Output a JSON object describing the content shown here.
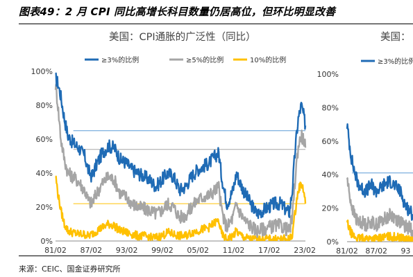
{
  "figure_title": "图表49：2 月 CPI 同比高增长科目数量仍居高位，但环比明显改善",
  "source": "来源：CEIC、国金证券研究所",
  "chart_data": [
    {
      "type": "line",
      "title": "美国：CPI通胀的广泛性（同比）",
      "xlabel": "",
      "ylabel": "",
      "x_tick_labels": [
        "81/02",
        "87/02",
        "93/02",
        "99/02",
        "05/02",
        "11/02",
        "17/02",
        "23/02"
      ],
      "y_tick_labels": [
        "0%",
        "20%",
        "40%",
        "60%",
        "80%",
        "100%"
      ],
      "ylim": [
        0,
        100
      ],
      "grid": false,
      "legend_position": "top",
      "x_start": 1981.1,
      "x_end": 2023.2,
      "reference_lines": [
        {
          "value": 65,
          "color": "#5B9BD5"
        },
        {
          "value": 54,
          "color": "#A5A5A5"
        },
        {
          "value": 22,
          "color": "#FFC000"
        }
      ],
      "series": [
        {
          "name": "≥3%的比例",
          "color": "#1F6BB5",
          "x": [
            1981.1,
            1981.5,
            1982.0,
            1982.6,
            1983.2,
            1984.0,
            1985.0,
            1986.0,
            1986.6,
            1987.2,
            1988.0,
            1989.0,
            1990.0,
            1991.0,
            1992.0,
            1993.0,
            1994.0,
            1995.0,
            1996.0,
            1997.0,
            1998.0,
            1999.0,
            2000.0,
            2001.0,
            2002.0,
            2003.0,
            2004.0,
            2005.0,
            2006.0,
            2007.0,
            2008.0,
            2008.6,
            2009.0,
            2009.5,
            2010.0,
            2011.0,
            2011.6,
            2012.0,
            2013.0,
            2014.0,
            2015.0,
            2016.0,
            2017.0,
            2018.0,
            2019.0,
            2020.0,
            2020.5,
            2021.0,
            2021.5,
            2022.0,
            2022.5,
            2022.9,
            2023.2
          ],
          "y": [
            96,
            93,
            85,
            72,
            62,
            58,
            55,
            50,
            42,
            38,
            45,
            52,
            56,
            55,
            48,
            46,
            42,
            40,
            38,
            36,
            32,
            36,
            40,
            38,
            30,
            32,
            38,
            42,
            44,
            46,
            50,
            52,
            40,
            30,
            22,
            30,
            40,
            36,
            28,
            22,
            16,
            18,
            20,
            22,
            22,
            18,
            17,
            30,
            55,
            72,
            80,
            74,
            68
          ]
        },
        {
          "name": "≥5%的比例",
          "color": "#A5A5A5",
          "x": [
            1981.1,
            1981.5,
            1982.0,
            1982.6,
            1983.2,
            1984.0,
            1985.0,
            1986.0,
            1986.6,
            1987.2,
            1988.0,
            1989.0,
            1990.0,
            1991.0,
            1992.0,
            1993.0,
            1994.0,
            1995.0,
            1996.0,
            1997.0,
            1998.0,
            1999.0,
            2000.0,
            2001.0,
            2002.0,
            2003.0,
            2004.0,
            2005.0,
            2006.0,
            2007.0,
            2008.0,
            2008.6,
            2009.0,
            2009.5,
            2010.0,
            2011.0,
            2011.6,
            2012.0,
            2013.0,
            2014.0,
            2015.0,
            2016.0,
            2017.0,
            2018.0,
            2019.0,
            2020.0,
            2020.5,
            2021.0,
            2021.5,
            2022.0,
            2022.5,
            2022.9,
            2023.2
          ],
          "y": [
            92,
            80,
            60,
            48,
            40,
            38,
            35,
            30,
            24,
            22,
            28,
            34,
            38,
            36,
            28,
            26,
            22,
            20,
            19,
            18,
            16,
            18,
            22,
            20,
            14,
            15,
            20,
            24,
            26,
            27,
            30,
            32,
            20,
            12,
            8,
            14,
            22,
            18,
            12,
            9,
            6,
            7,
            8,
            9,
            9,
            7,
            6,
            14,
            38,
            56,
            62,
            60,
            55
          ]
        },
        {
          "name": "10%的比例",
          "color": "#FFC000",
          "x": [
            1981.1,
            1981.5,
            1982.0,
            1982.6,
            1983.2,
            1984.0,
            1985.0,
            1986.0,
            1986.6,
            1987.2,
            1988.0,
            1989.0,
            1990.0,
            1991.0,
            1992.0,
            1993.0,
            1994.0,
            1995.0,
            1996.0,
            1997.0,
            1998.0,
            1999.0,
            2000.0,
            2001.0,
            2002.0,
            2003.0,
            2004.0,
            2005.0,
            2006.0,
            2007.0,
            2008.0,
            2008.6,
            2009.0,
            2009.5,
            2010.0,
            2011.0,
            2011.6,
            2012.0,
            2013.0,
            2014.0,
            2015.0,
            2016.0,
            2017.0,
            2018.0,
            2019.0,
            2020.0,
            2020.5,
            2021.0,
            2021.5,
            2022.0,
            2022.5,
            2022.9,
            2023.2
          ],
          "y": [
            39,
            28,
            18,
            10,
            6,
            5,
            4,
            4,
            3,
            4,
            6,
            8,
            10,
            9,
            6,
            5,
            4,
            3,
            3,
            2,
            2,
            3,
            5,
            4,
            3,
            3,
            5,
            6,
            7,
            8,
            11,
            12,
            5,
            2,
            1,
            3,
            6,
            4,
            2,
            1,
            1,
            1,
            1,
            1,
            1,
            1,
            1,
            4,
            18,
            30,
            34,
            30,
            22
          ]
        }
      ]
    },
    {
      "type": "line",
      "title": "美国：",
      "xlabel": "",
      "ylabel": "",
      "x_tick_labels": [
        "81/02",
        "87/02",
        "93"
      ],
      "y_tick_labels": [
        "0%",
        "20%",
        "40%",
        "60%",
        "80%",
        "100%"
      ],
      "ylim": [
        0,
        100
      ],
      "grid": false,
      "legend_position": "top",
      "x_start": 1981.1,
      "x_end": 1994.6,
      "reference_lines": [
        {
          "value": 41,
          "color": "#5B9BD5"
        }
      ],
      "series": [
        {
          "name": "≥3%的比例",
          "color": "#1F6BB5",
          "x": [
            1981.1,
            1981.5,
            1982.0,
            1982.6,
            1983.2,
            1984.0,
            1985.0,
            1986.0,
            1987.0,
            1988.0,
            1989.0,
            1990.0,
            1991.0,
            1992.0,
            1993.0,
            1994.0,
            1994.6
          ],
          "y": [
            70,
            60,
            50,
            42,
            36,
            32,
            30,
            34,
            30,
            32,
            35,
            36,
            33,
            30,
            22,
            18,
            16
          ]
        },
        {
          "name": "",
          "color": "#A5A5A5",
          "x": [
            1981.1,
            1981.5,
            1982.0,
            1982.6,
            1983.2,
            1984.0,
            1985.0,
            1986.0,
            1987.0,
            1988.0,
            1989.0,
            1990.0,
            1991.0,
            1992.0,
            1993.0,
            1994.0,
            1994.6
          ],
          "y": [
            38,
            30,
            22,
            16,
            12,
            12,
            10,
            12,
            10,
            12,
            14,
            16,
            14,
            12,
            9,
            8,
            7
          ]
        },
        {
          "name": "",
          "color": "#FFC000",
          "x": [
            1981.1,
            1981.5,
            1982.0,
            1982.6,
            1983.2,
            1984.0,
            1985.0,
            1986.0,
            1987.0,
            1988.0,
            1989.0,
            1990.0,
            1991.0,
            1992.0,
            1993.0,
            1994.0,
            1994.6
          ],
          "y": [
            12,
            8,
            5,
            3,
            2,
            2,
            2,
            2,
            2,
            2,
            3,
            3,
            3,
            2,
            2,
            1,
            1
          ]
        }
      ]
    }
  ]
}
